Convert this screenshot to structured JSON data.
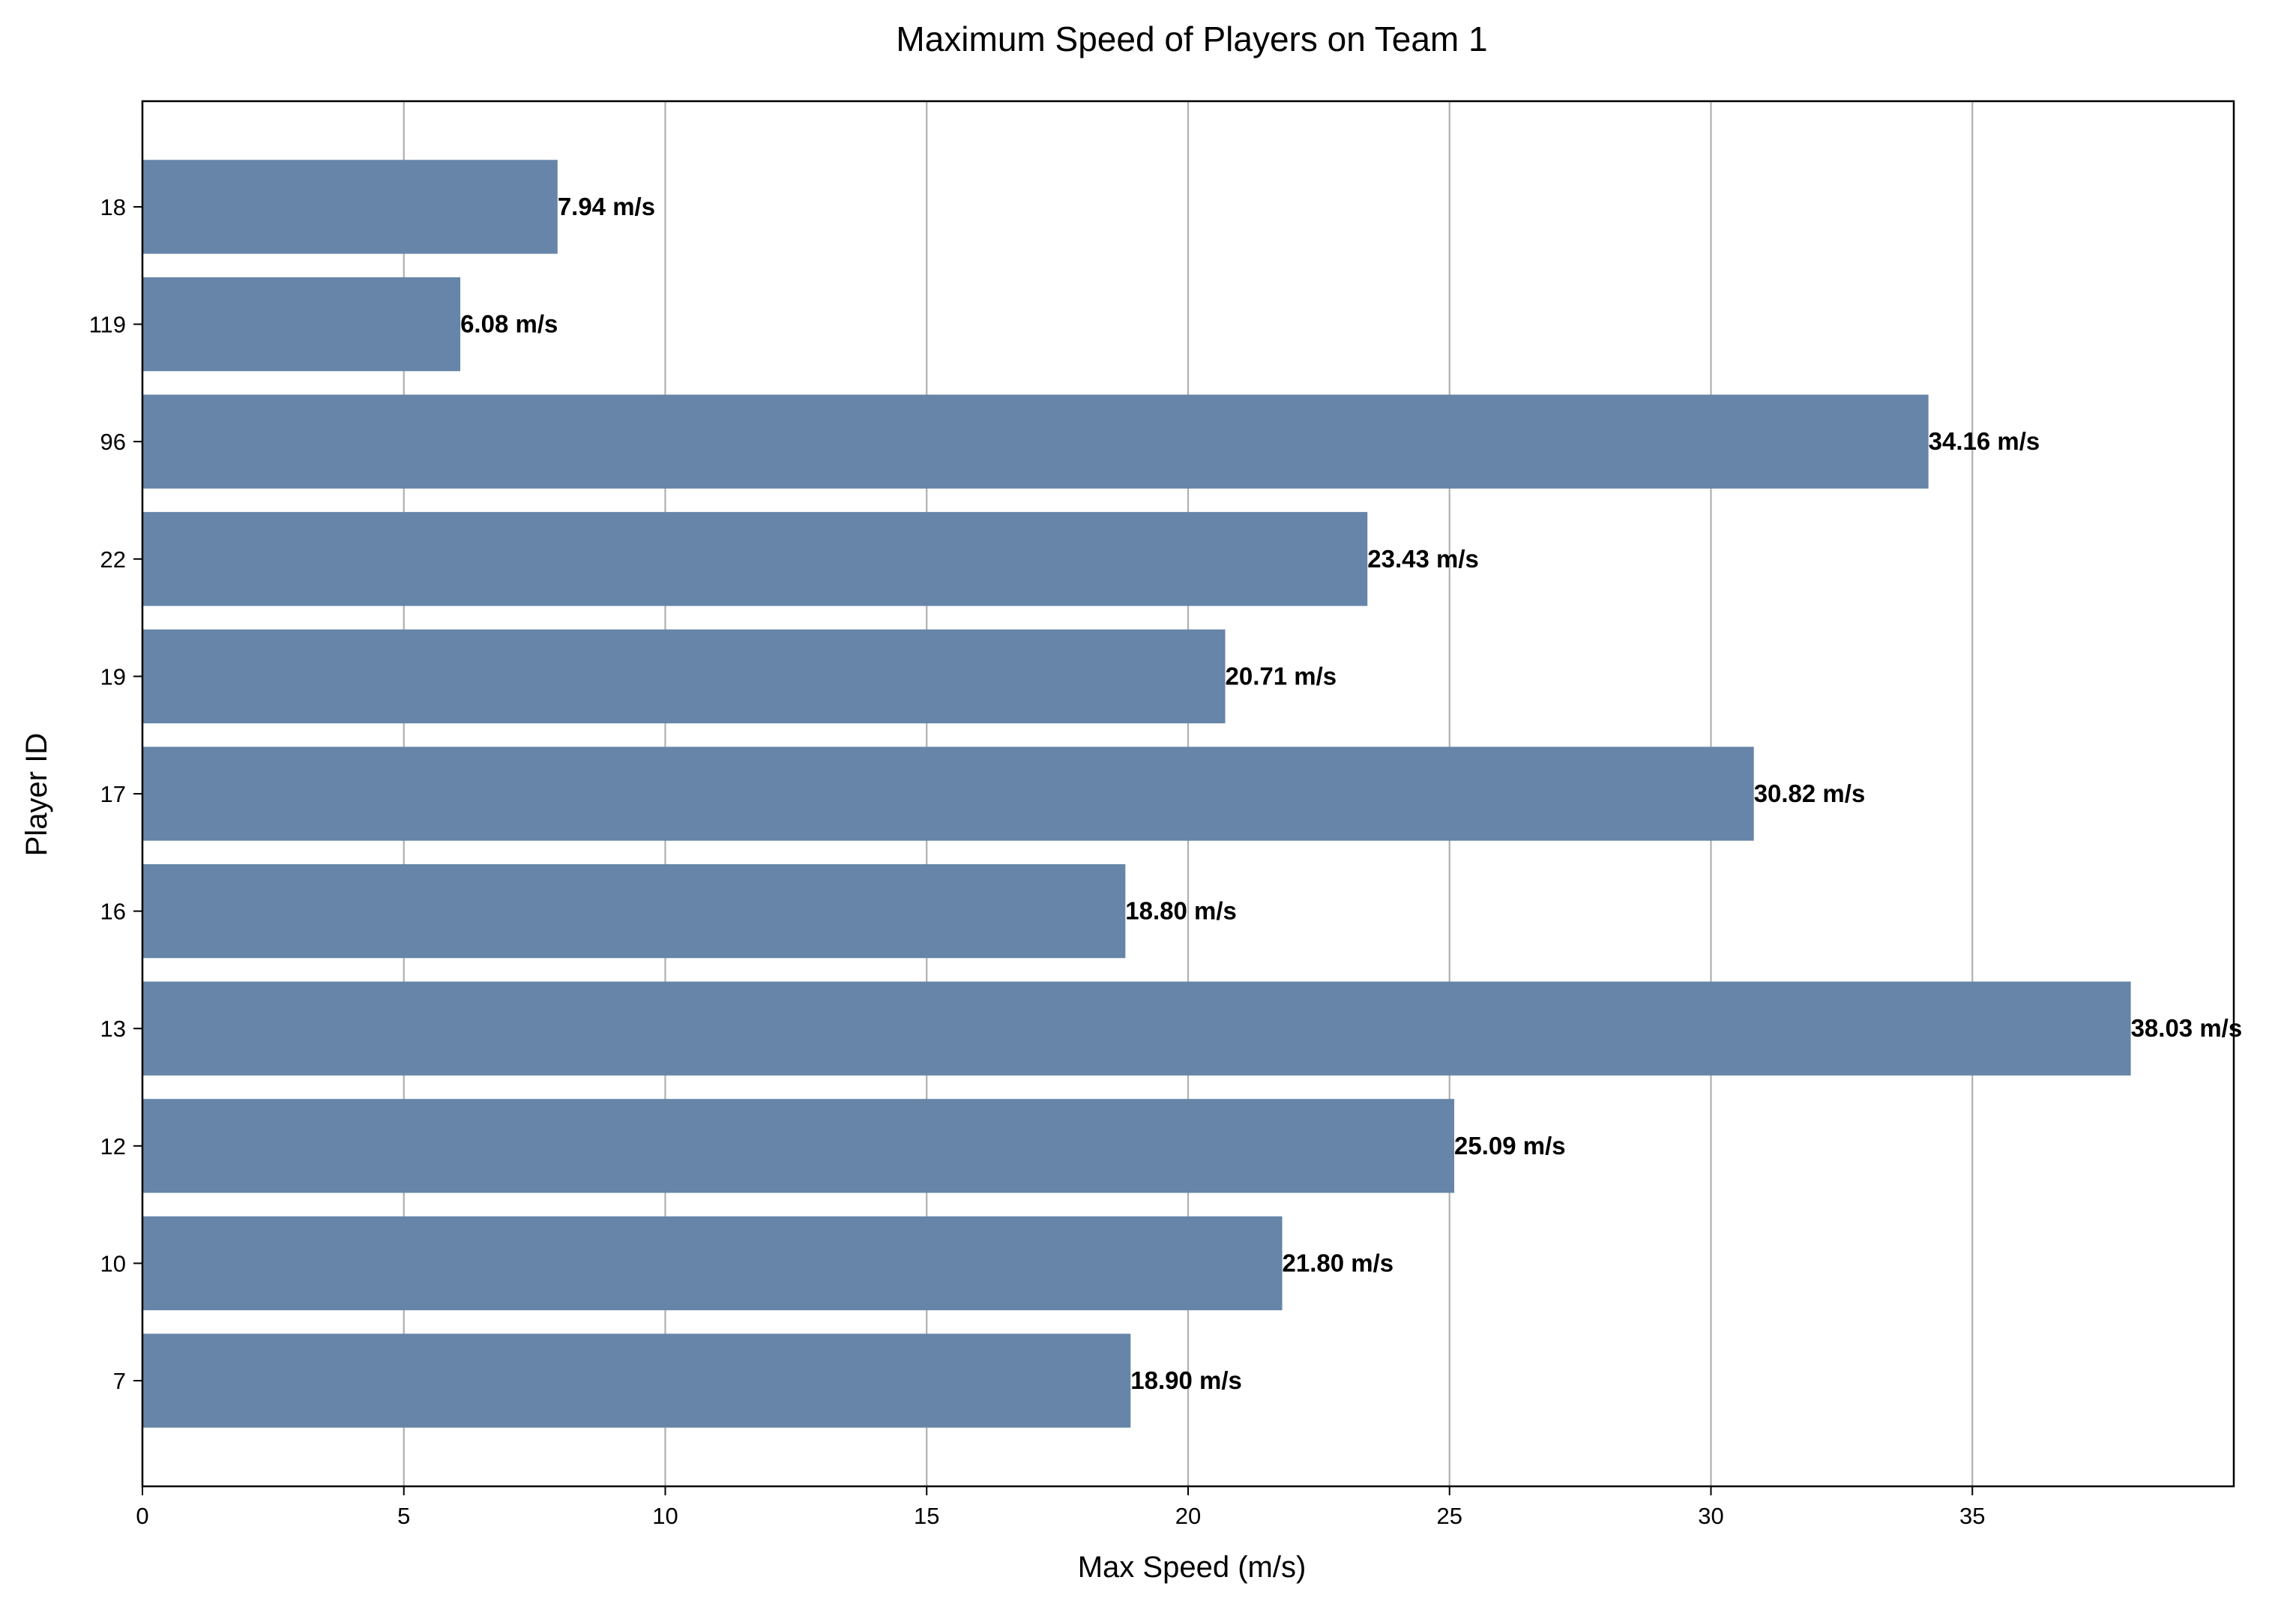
{
  "chart_data": {
    "type": "bar",
    "orientation": "horizontal",
    "title": "Maximum Speed of Players on Team 1",
    "xlabel": "Max Speed (m/s)",
    "ylabel": "Player ID",
    "categories": [
      "7",
      "10",
      "12",
      "13",
      "16",
      "17",
      "19",
      "22",
      "96",
      "119",
      "18"
    ],
    "values": [
      18.9,
      21.8,
      25.09,
      38.03,
      18.8,
      30.82,
      20.71,
      23.43,
      34.16,
      6.08,
      7.94
    ],
    "value_labels": [
      "18.90 m/s",
      "21.80 m/s",
      "25.09 m/s",
      "38.03 m/s",
      "18.80 m/s",
      "30.82 m/s",
      "20.71 m/s",
      "23.43 m/s",
      "34.16 m/s",
      "6.08 m/s",
      "7.94 m/s"
    ],
    "xlim": [
      0,
      40
    ],
    "xticks": [
      0,
      5,
      10,
      15,
      20,
      25,
      30,
      35
    ],
    "grid": "vertical",
    "bar_color": "#6685a8",
    "grid_color": "#b0b0b0"
  }
}
